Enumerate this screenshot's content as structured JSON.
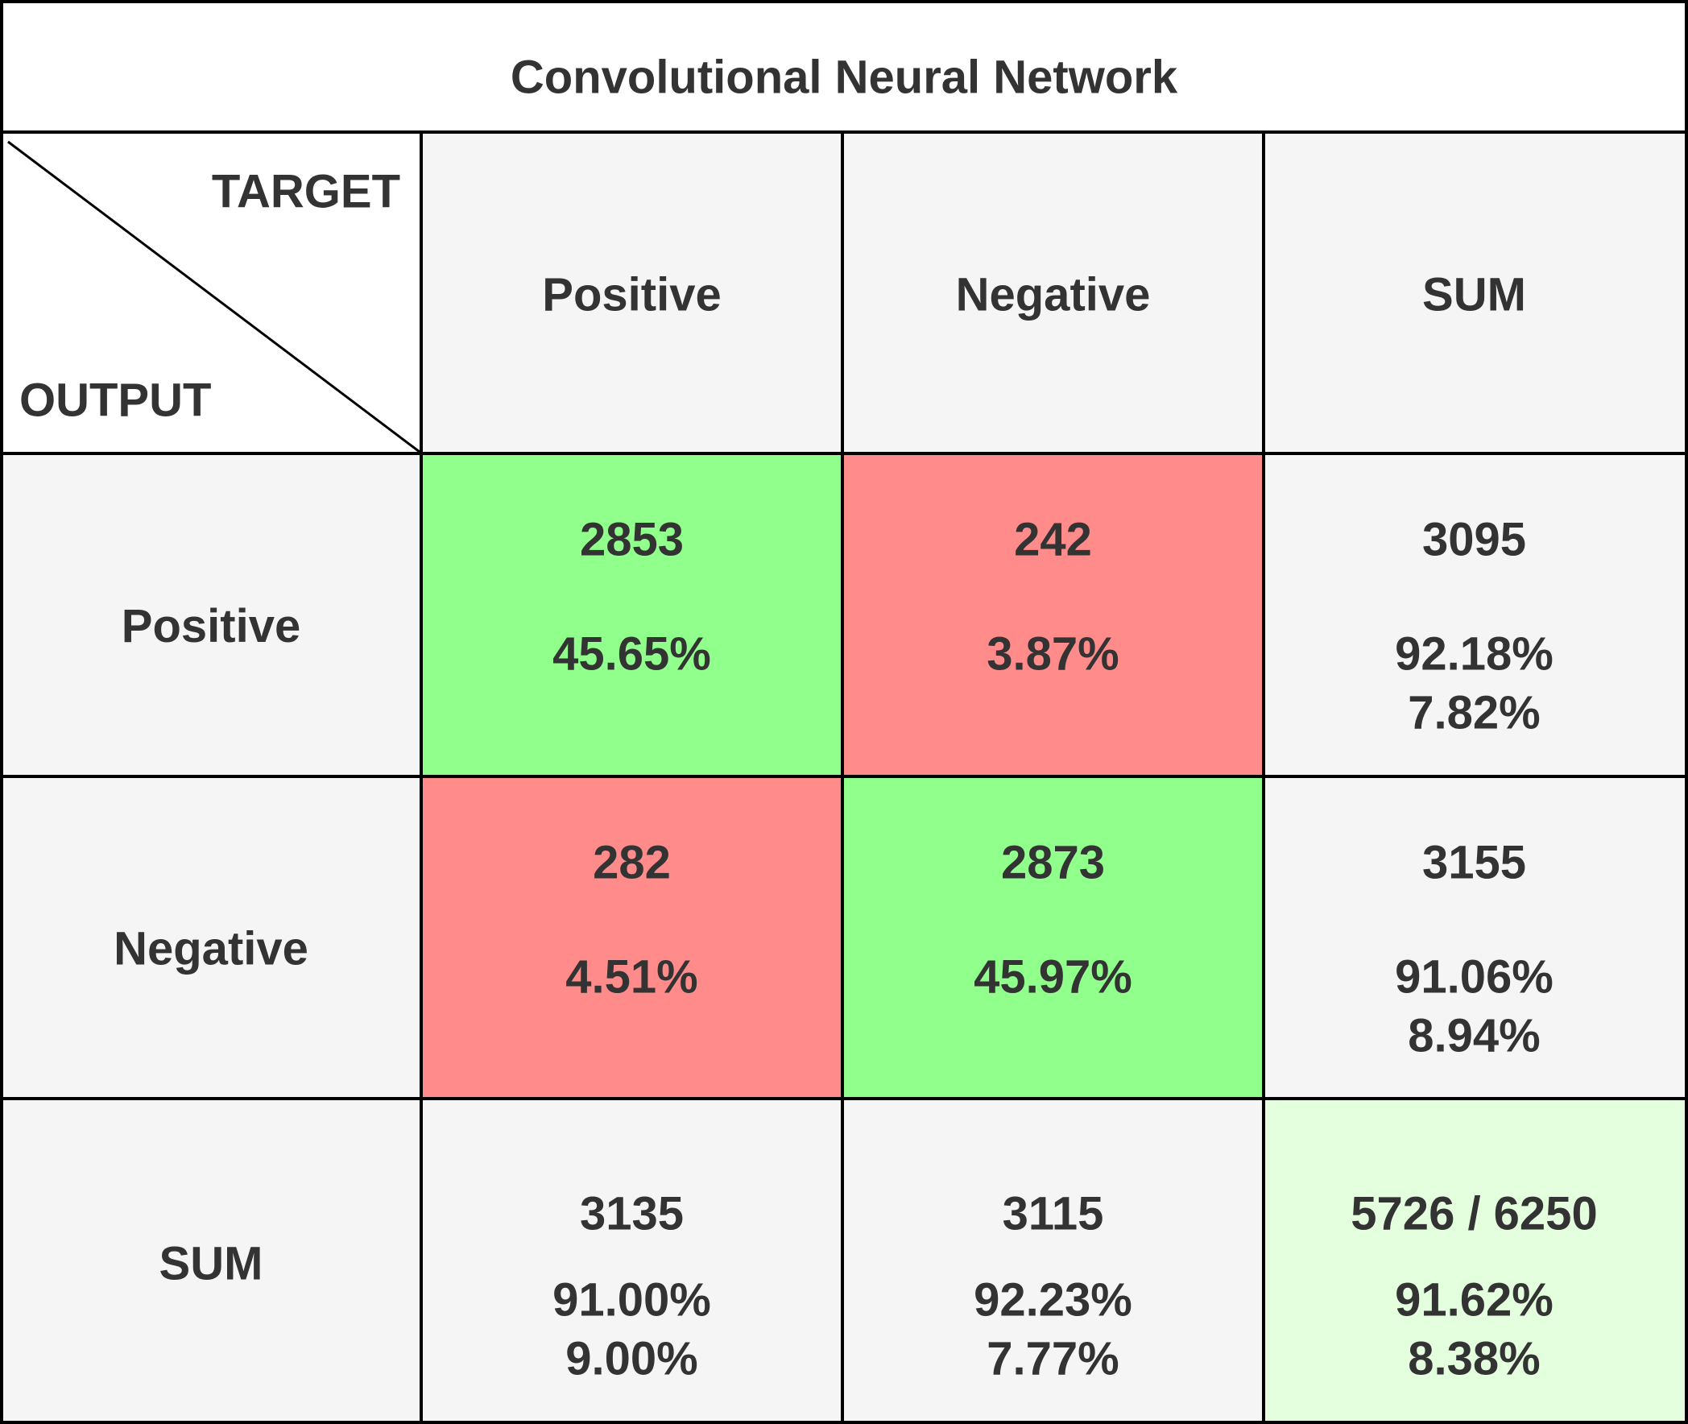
{
  "chart_data": {
    "type": "table",
    "title": "Convolutional Neural Network",
    "corner": {
      "top_label": "TARGET",
      "bottom_label": "OUTPUT"
    },
    "column_headers": [
      "Positive",
      "Negative",
      "SUM"
    ],
    "row_headers": [
      "Positive",
      "Negative",
      "SUM"
    ],
    "rows": [
      [
        {
          "count": "2853",
          "pct": "45.65%",
          "kind": "correct"
        },
        {
          "count": "242",
          "pct": "3.87%",
          "kind": "error"
        },
        {
          "count": "3095",
          "good": "92.18%",
          "bad": "7.82%",
          "kind": "sum"
        }
      ],
      [
        {
          "count": "282",
          "pct": "4.51%",
          "kind": "error"
        },
        {
          "count": "2873",
          "pct": "45.97%",
          "kind": "correct"
        },
        {
          "count": "3155",
          "good": "91.06%",
          "bad": "8.94%",
          "kind": "sum"
        }
      ],
      [
        {
          "count": "3135",
          "good": "91.00%",
          "bad": "9.00%",
          "kind": "sum"
        },
        {
          "count": "3115",
          "good": "92.23%",
          "bad": "7.77%",
          "kind": "sum"
        },
        {
          "count": "5726 / 6250",
          "good": "91.62%",
          "bad": "8.38%",
          "kind": "total"
        }
      ]
    ],
    "colors": {
      "correct": "#90ff8c",
      "error": "#ff8c8a",
      "sum": "#f5f5f5",
      "total": "#e3ffdd",
      "header": "#f5f5f5",
      "good_text": "#107c10",
      "bad_text": "#ff0000",
      "text": "#333333",
      "grid": "#000000"
    }
  }
}
